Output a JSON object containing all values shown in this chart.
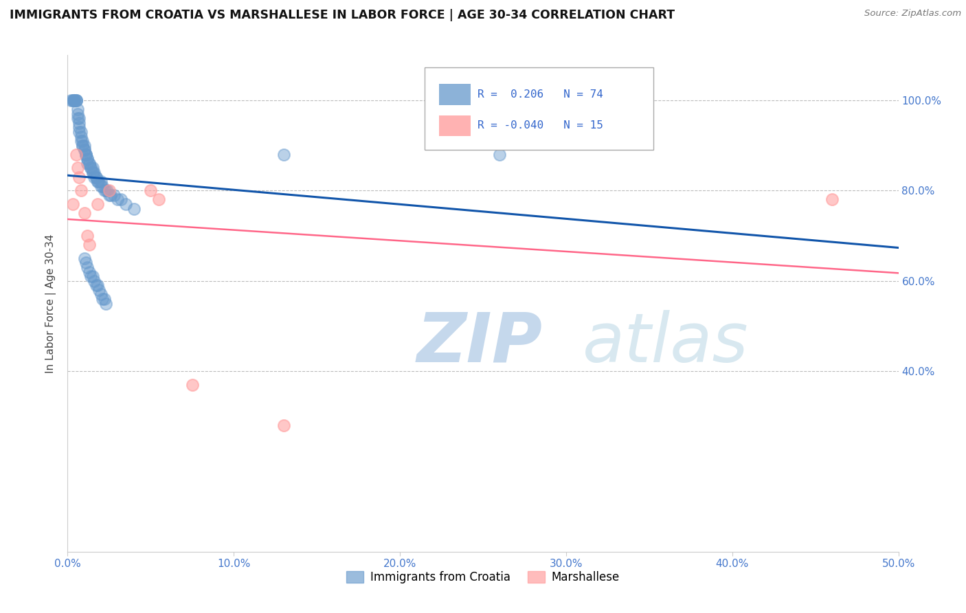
{
  "title": "IMMIGRANTS FROM CROATIA VS MARSHALLESE IN LABOR FORCE | AGE 30-34 CORRELATION CHART",
  "source": "Source: ZipAtlas.com",
  "ylabel": "In Labor Force | Age 30-34",
  "xlim": [
    0.0,
    0.5
  ],
  "ylim": [
    0.0,
    1.1
  ],
  "xtick_vals": [
    0.0,
    0.1,
    0.2,
    0.3,
    0.4,
    0.5
  ],
  "ytick_vals": [
    0.4,
    0.6,
    0.8,
    1.0
  ],
  "croatia_color": "#6699CC",
  "marshallese_color": "#FF9999",
  "croatia_line_color": "#1155AA",
  "marshallese_line_color": "#FF6688",
  "croatia_R": 0.206,
  "croatia_N": 74,
  "marshallese_R": -0.04,
  "marshallese_N": 15,
  "grid_color": "#BBBBBB",
  "background_color": "#FFFFFF",
  "croatia_x": [
    0.002,
    0.003,
    0.003,
    0.004,
    0.004,
    0.004,
    0.005,
    0.005,
    0.005,
    0.006,
    0.006,
    0.006,
    0.007,
    0.007,
    0.007,
    0.007,
    0.008,
    0.008,
    0.008,
    0.009,
    0.009,
    0.009,
    0.01,
    0.01,
    0.01,
    0.011,
    0.011,
    0.011,
    0.012,
    0.012,
    0.012,
    0.013,
    0.013,
    0.014,
    0.014,
    0.015,
    0.015,
    0.015,
    0.016,
    0.016,
    0.017,
    0.017,
    0.018,
    0.018,
    0.019,
    0.02,
    0.02,
    0.021,
    0.022,
    0.023,
    0.024,
    0.025,
    0.026,
    0.028,
    0.03,
    0.032,
    0.035,
    0.04,
    0.01,
    0.011,
    0.012,
    0.013,
    0.014,
    0.015,
    0.016,
    0.017,
    0.018,
    0.019,
    0.02,
    0.021,
    0.022,
    0.023,
    0.13,
    0.26
  ],
  "croatia_y": [
    1.0,
    1.0,
    1.0,
    1.0,
    1.0,
    1.0,
    1.0,
    1.0,
    1.0,
    0.98,
    0.97,
    0.96,
    0.96,
    0.95,
    0.94,
    0.93,
    0.93,
    0.92,
    0.91,
    0.91,
    0.9,
    0.9,
    0.9,
    0.89,
    0.89,
    0.88,
    0.88,
    0.88,
    0.87,
    0.87,
    0.86,
    0.86,
    0.86,
    0.85,
    0.85,
    0.85,
    0.84,
    0.84,
    0.84,
    0.83,
    0.83,
    0.83,
    0.82,
    0.82,
    0.82,
    0.82,
    0.81,
    0.81,
    0.8,
    0.8,
    0.8,
    0.79,
    0.79,
    0.79,
    0.78,
    0.78,
    0.77,
    0.76,
    0.65,
    0.64,
    0.63,
    0.62,
    0.61,
    0.61,
    0.6,
    0.59,
    0.59,
    0.58,
    0.57,
    0.56,
    0.56,
    0.55,
    0.88,
    0.88
  ],
  "marshallese_x": [
    0.003,
    0.005,
    0.006,
    0.007,
    0.008,
    0.01,
    0.011,
    0.012,
    0.013,
    0.018,
    0.02,
    0.03,
    0.05,
    0.46,
    0.46
  ],
  "marshallese_y": [
    0.77,
    0.88,
    0.85,
    0.83,
    0.8,
    0.75,
    0.72,
    0.7,
    0.68,
    0.77,
    0.75,
    0.77,
    0.8,
    0.78,
    0.78
  ],
  "marshallese_x_final": [
    0.003,
    0.005,
    0.006,
    0.007,
    0.008,
    0.01,
    0.012,
    0.013,
    0.018,
    0.025,
    0.05,
    0.055,
    0.46,
    0.075,
    0.13
  ],
  "marshallese_y_final": [
    0.77,
    0.88,
    0.85,
    0.83,
    0.8,
    0.75,
    0.7,
    0.68,
    0.77,
    0.8,
    0.8,
    0.78,
    0.78,
    0.37,
    0.28
  ]
}
